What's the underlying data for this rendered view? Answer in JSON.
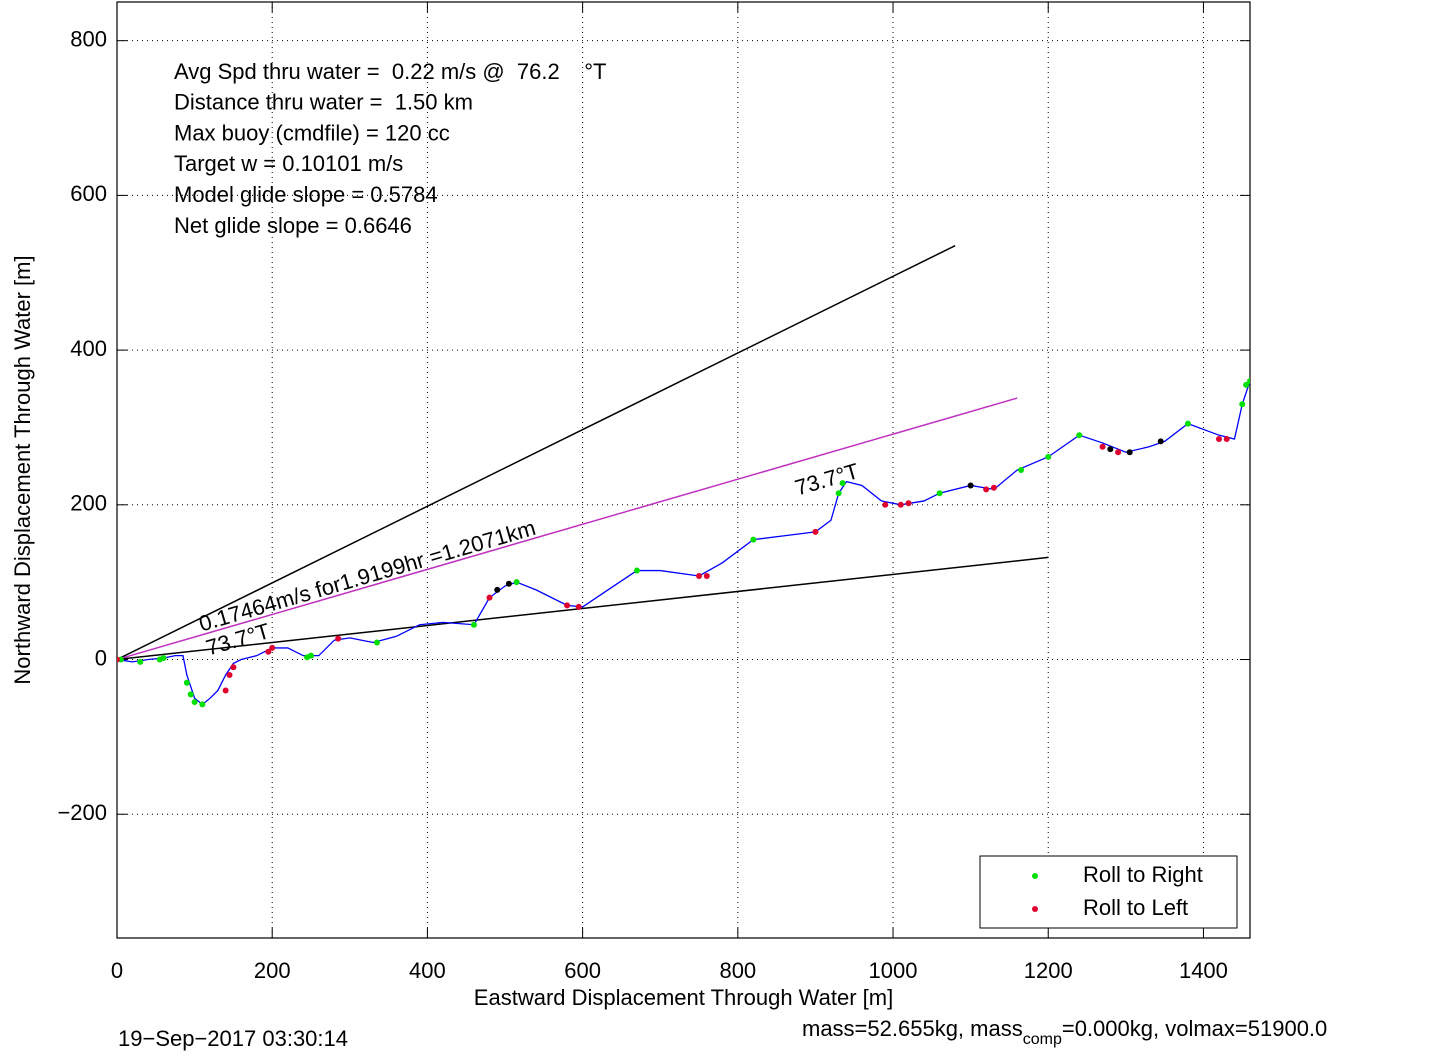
{
  "chart_data": {
    "type": "line",
    "xlabel": "Eastward Displacement Through Water [m]",
    "ylabel": "Northward Displacement Through Water [m]",
    "xlim": [
      0,
      1460
    ],
    "ylim": [
      -360,
      850
    ],
    "xticks": [
      0,
      200,
      400,
      600,
      800,
      1000,
      1200,
      1400
    ],
    "yticks": [
      -200,
      0,
      200,
      400,
      600,
      800
    ],
    "grid": true,
    "legend": "lower right",
    "info_lines": [
      "Avg Spd thru water =  0.22 m/s @  76.2    °T",
      "Distance thru water =  1.50 km",
      "Max buoy (cmdfile) = 120 cc",
      "Target w = 0.10101 m/s",
      "Model glide slope = 0.5784",
      "Net glide slope = 0.6646"
    ],
    "annotations": [
      "0.17464m/s for1.9199hr =1.2071km",
      "73.7°T",
      "73.7°T"
    ],
    "footer_left": "19−Sep−2017 03:30:14",
    "footer_right": [
      "mass=52.655kg, mass",
      "comp",
      "=0.000kg, volmax=51900.0"
    ],
    "series": [
      {
        "kind": "line",
        "color": "#000000",
        "x": [
          0,
          1080
        ],
        "y": [
          0,
          535
        ]
      },
      {
        "kind": "line",
        "color": "#c030c0",
        "x": [
          0,
          1160
        ],
        "y": [
          0,
          338
        ]
      },
      {
        "kind": "line",
        "color": "#000000",
        "x": [
          0,
          1200
        ],
        "y": [
          0,
          132
        ]
      },
      {
        "kind": "line",
        "color": "#0000ff",
        "x": [
          0,
          20,
          40,
          60,
          75,
          85,
          90,
          100,
          110,
          120,
          130,
          140,
          150,
          160,
          180,
          200,
          220,
          240,
          260,
          280,
          300,
          330,
          360,
          390,
          420,
          460,
          480,
          500,
          515,
          540,
          580,
          600,
          640,
          670,
          700,
          750,
          780,
          820,
          860,
          900,
          920,
          930,
          940,
          960,
          985,
          1010,
          1040,
          1060,
          1100,
          1130,
          1160,
          1200,
          1240,
          1270,
          1300,
          1330,
          1350,
          1380,
          1420,
          1440,
          1450,
          1460
        ],
        "y": [
          0,
          -3,
          0,
          2,
          5,
          5,
          -20,
          -50,
          -58,
          -50,
          -40,
          -20,
          -5,
          0,
          5,
          15,
          15,
          5,
          5,
          25,
          28,
          22,
          30,
          45,
          48,
          45,
          80,
          95,
          100,
          90,
          70,
          68,
          95,
          115,
          115,
          108,
          125,
          155,
          160,
          165,
          180,
          215,
          230,
          225,
          205,
          200,
          205,
          215,
          225,
          220,
          245,
          262,
          290,
          280,
          268,
          275,
          282,
          305,
          290,
          285,
          330,
          360
        ]
      },
      {
        "kind": "scatter",
        "name": "Roll to Right",
        "color": "#00e000",
        "x": [
          5,
          30,
          55,
          60,
          90,
          95,
          100,
          110,
          245,
          250,
          335,
          460,
          515,
          670,
          820,
          930,
          935,
          1060,
          1165,
          1200,
          1240,
          1380,
          1450,
          1455,
          1460
        ],
        "y": [
          0,
          -3,
          0,
          2,
          -30,
          -45,
          -55,
          -58,
          3,
          5,
          22,
          45,
          100,
          115,
          155,
          215,
          228,
          215,
          245,
          262,
          290,
          305,
          330,
          355,
          360
        ]
      },
      {
        "kind": "scatter",
        "name": "Roll to Left",
        "color": "#e00030",
        "x": [
          0,
          140,
          145,
          150,
          195,
          200,
          285,
          480,
          580,
          595,
          750,
          760,
          900,
          990,
          1010,
          1020,
          1120,
          1130,
          1270,
          1290,
          1420,
          1430
        ],
        "y": [
          0,
          -40,
          -20,
          -10,
          10,
          15,
          27,
          80,
          70,
          68,
          108,
          108,
          165,
          200,
          200,
          202,
          220,
          222,
          275,
          268,
          285,
          285
        ]
      },
      {
        "kind": "scatter",
        "color": "#000000",
        "x": [
          490,
          505,
          1100,
          1280,
          1305,
          1345
        ],
        "y": [
          90,
          98,
          225,
          272,
          268,
          282
        ]
      }
    ]
  }
}
